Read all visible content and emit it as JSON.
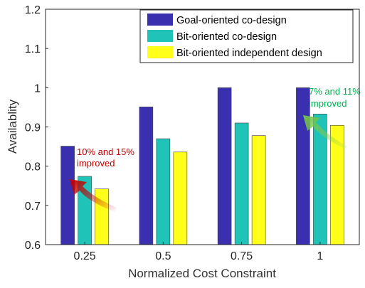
{
  "chart_data": {
    "type": "bar",
    "title": "",
    "xlabel": "Normalized Cost Constraint",
    "ylabel": "Availablity",
    "categories": [
      "0.25",
      "0.5",
      "0.75",
      "1"
    ],
    "ylim": [
      0.6,
      1.2
    ],
    "yticks": [
      "0.6",
      "0.7",
      "0.8",
      "0.9",
      "1",
      "1.1",
      "1.2"
    ],
    "grid": false,
    "legend_position": "top-right",
    "series": [
      {
        "name": "Goal-oriented co-design",
        "color": "#3a2fae",
        "values": [
          0.851,
          0.951,
          1.0,
          1.0
        ]
      },
      {
        "name": "Bit-oriented co-design",
        "color": "#1fc3b7",
        "values": [
          0.774,
          0.87,
          0.91,
          0.933
        ]
      },
      {
        "name": "Bit-oriented independent design",
        "color": "#ffff1a",
        "values": [
          0.742,
          0.836,
          0.878,
          0.904
        ]
      }
    ],
    "annotations": [
      {
        "text_line1": "10% and 15%",
        "text_line2": "improved",
        "color": "#c00000"
      },
      {
        "text_line1": "7% and 11%",
        "text_line2": "improved",
        "color": "#00b050"
      }
    ]
  }
}
